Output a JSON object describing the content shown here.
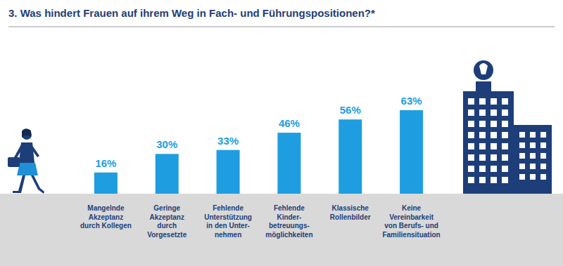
{
  "chart_data": {
    "type": "bar",
    "title": "3. Was hindert Frauen auf ihrem Weg in Fach- und Führungspositionen?*",
    "categories": [
      "Mangelnde\nAkzeptanz\ndurch Kollegen",
      "Geringe\nAkzeptanz\ndurch\nVorgesetzte",
      "Fehlende\nUnterstützung\nin den Unter-\nnehmen",
      "Fehlende\nKinder-\nbetreuungs-\nmöglichkeiten",
      "Klassische\nRollenbilder",
      "Keine\nVereinbarkeit\nvon Berufs- und\nFamiliensituation"
    ],
    "values": [
      16,
      30,
      33,
      46,
      56,
      63
    ],
    "value_labels": [
      "16%",
      "30%",
      "33%",
      "46%",
      "56%",
      "63%"
    ],
    "color": "#1e9ee0",
    "data_labels": true
  }
}
